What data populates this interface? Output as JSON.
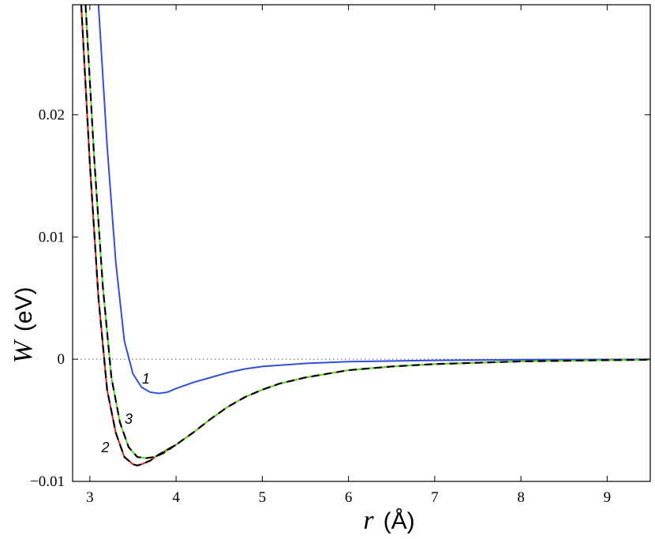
{
  "chart_data": {
    "type": "line",
    "xlabel_var": "r",
    "xlabel_unit": "(Å)",
    "ylabel_var": "W",
    "ylabel_unit": "(eV)",
    "xlim": [
      2.8,
      9.5
    ],
    "ylim": [
      -0.01,
      0.029
    ],
    "x_ticks": [
      3,
      4,
      5,
      6,
      7,
      8,
      9
    ],
    "x_tick_labels": [
      "3",
      "4",
      "5",
      "6",
      "7",
      "8",
      "9"
    ],
    "y_ticks": [
      -0.01,
      0,
      0.01,
      0.02
    ],
    "y_tick_labels": [
      "−0.01",
      "0",
      "0.01",
      "0.02"
    ],
    "zero_line": true,
    "grid": false,
    "series": [
      {
        "name": "1",
        "color": "#2f4ee0",
        "style": "solid",
        "points": [
          [
            3.1,
            0.029
          ],
          [
            3.2,
            0.0175
          ],
          [
            3.3,
            0.008
          ],
          [
            3.4,
            0.0015
          ],
          [
            3.5,
            -0.0012
          ],
          [
            3.6,
            -0.0023
          ],
          [
            3.7,
            -0.0027
          ],
          [
            3.8,
            -0.0028
          ],
          [
            3.9,
            -0.0027
          ],
          [
            4.0,
            -0.0024
          ],
          [
            4.2,
            -0.0019
          ],
          [
            4.4,
            -0.0015
          ],
          [
            4.6,
            -0.0011
          ],
          [
            4.8,
            -0.0008
          ],
          [
            5.0,
            -0.0006
          ],
          [
            5.5,
            -0.00035
          ],
          [
            6.0,
            -0.0002
          ],
          [
            7.0,
            -0.0001
          ],
          [
            8.0,
            -4e-05
          ],
          [
            9.0,
            -2e-05
          ],
          [
            9.5,
            -1e-05
          ]
        ]
      },
      {
        "name": "2",
        "color": "#e02020",
        "style": "solid",
        "points": [
          [
            2.9,
            0.029
          ],
          [
            3.0,
            0.016
          ],
          [
            3.1,
            0.005
          ],
          [
            3.2,
            -0.0025
          ],
          [
            3.3,
            -0.006
          ],
          [
            3.4,
            -0.008
          ],
          [
            3.5,
            -0.0086
          ],
          [
            3.55,
            -0.0087
          ],
          [
            3.6,
            -0.0086
          ],
          [
            3.7,
            -0.0083
          ],
          [
            3.8,
            -0.0078
          ],
          [
            4.0,
            -0.007
          ],
          [
            4.2,
            -0.006
          ],
          [
            4.4,
            -0.0049
          ],
          [
            4.6,
            -0.0039
          ],
          [
            4.8,
            -0.0031
          ],
          [
            5.0,
            -0.0025
          ],
          [
            5.2,
            -0.002
          ],
          [
            5.5,
            -0.0015
          ],
          [
            6.0,
            -0.0009
          ],
          [
            6.5,
            -0.0006
          ],
          [
            7.0,
            -0.0004
          ],
          [
            8.0,
            -0.00018
          ],
          [
            9.0,
            -8e-05
          ],
          [
            9.5,
            -5e-05
          ]
        ]
      },
      {
        "name": "3",
        "color": "#55dd22",
        "style": "solid",
        "points": [
          [
            2.95,
            0.029
          ],
          [
            3.05,
            0.0165
          ],
          [
            3.15,
            0.006
          ],
          [
            3.25,
            -0.0015
          ],
          [
            3.35,
            -0.0052
          ],
          [
            3.45,
            -0.0072
          ],
          [
            3.55,
            -0.008
          ],
          [
            3.65,
            -0.0081
          ],
          [
            3.75,
            -0.008
          ],
          [
            3.85,
            -0.0077
          ],
          [
            4.0,
            -0.007
          ],
          [
            4.2,
            -0.006
          ],
          [
            4.4,
            -0.0049
          ],
          [
            4.6,
            -0.0039
          ],
          [
            4.8,
            -0.0031
          ],
          [
            5.0,
            -0.0025
          ],
          [
            5.2,
            -0.002
          ],
          [
            5.5,
            -0.0015
          ],
          [
            6.0,
            -0.0009
          ],
          [
            6.5,
            -0.0006
          ],
          [
            7.0,
            -0.0004
          ],
          [
            8.0,
            -0.00018
          ],
          [
            9.0,
            -8e-05
          ],
          [
            9.5,
            -5e-05
          ]
        ]
      },
      {
        "name": "",
        "color": "#000000",
        "style": "dashed",
        "points": [
          [
            2.9,
            0.029
          ],
          [
            3.0,
            0.016
          ],
          [
            3.1,
            0.005
          ],
          [
            3.2,
            -0.0025
          ],
          [
            3.3,
            -0.006
          ],
          [
            3.4,
            -0.008
          ],
          [
            3.5,
            -0.0086
          ],
          [
            3.55,
            -0.0087
          ],
          [
            3.6,
            -0.0086
          ],
          [
            3.7,
            -0.0083
          ],
          [
            3.8,
            -0.0078
          ],
          [
            4.0,
            -0.007
          ],
          [
            4.2,
            -0.006
          ],
          [
            4.4,
            -0.0049
          ],
          [
            4.6,
            -0.0039
          ],
          [
            4.8,
            -0.0031
          ],
          [
            5.0,
            -0.0025
          ],
          [
            5.2,
            -0.002
          ],
          [
            5.5,
            -0.0015
          ],
          [
            6.0,
            -0.0009
          ],
          [
            6.5,
            -0.0006
          ],
          [
            7.0,
            -0.0004
          ],
          [
            8.0,
            -0.00018
          ],
          [
            9.0,
            -8e-05
          ],
          [
            9.5,
            -5e-05
          ]
        ]
      },
      {
        "name": "",
        "color": "#000000",
        "style": "dashed",
        "points": [
          [
            2.95,
            0.029
          ],
          [
            3.05,
            0.0165
          ],
          [
            3.15,
            0.006
          ],
          [
            3.25,
            -0.0015
          ],
          [
            3.35,
            -0.0052
          ],
          [
            3.45,
            -0.0072
          ],
          [
            3.55,
            -0.008
          ],
          [
            3.65,
            -0.0081
          ],
          [
            3.75,
            -0.008
          ],
          [
            3.85,
            -0.0077
          ],
          [
            4.0,
            -0.007
          ]
        ]
      }
    ],
    "annotations": [
      {
        "text": "1",
        "x": 3.65,
        "y": -0.002
      },
      {
        "text": "2",
        "x": 3.18,
        "y": -0.0076
      },
      {
        "text": "3",
        "x": 3.45,
        "y": -0.0053
      }
    ]
  }
}
